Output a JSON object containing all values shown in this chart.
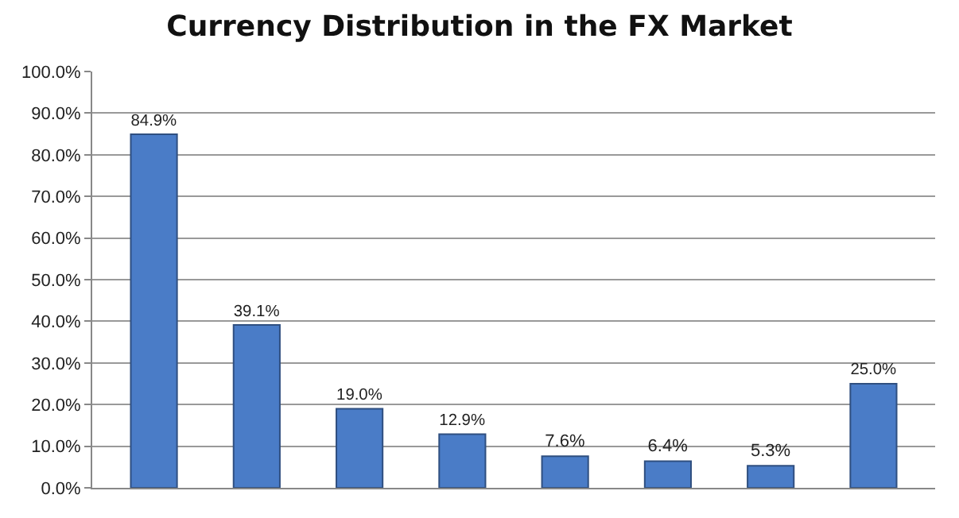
{
  "chart_data": {
    "type": "bar",
    "title": "Currency Distribution in the FX Market",
    "categories": [
      null,
      null,
      null,
      null,
      null,
      null,
      null,
      null
    ],
    "values": [
      84.9,
      39.1,
      19.0,
      12.9,
      7.6,
      6.4,
      5.3,
      25.0
    ],
    "value_labels": [
      "84.9%",
      "39.1%",
      "19.0%",
      "12.9%",
      "7.6%",
      "6.4%",
      "5.3%",
      "25.0%"
    ],
    "color": "#4a7cc7",
    "ylim": [
      0,
      100
    ],
    "yticks": [
      {
        "value": 0,
        "label": "0.0%"
      },
      {
        "value": 10,
        "label": "10.0%"
      },
      {
        "value": 20,
        "label": "20.0%"
      },
      {
        "value": 30,
        "label": "30.0%"
      },
      {
        "value": 40,
        "label": "40.0%"
      },
      {
        "value": 50,
        "label": "50.0%"
      },
      {
        "value": 60,
        "label": "60.0%"
      },
      {
        "value": 70,
        "label": "70.0%"
      },
      {
        "value": 80,
        "label": "80.0%"
      },
      {
        "value": 90,
        "label": "90.0%"
      },
      {
        "value": 100,
        "label": "100.0%"
      }
    ],
    "grid": "y",
    "legend": false,
    "tick_labels": "y"
  }
}
